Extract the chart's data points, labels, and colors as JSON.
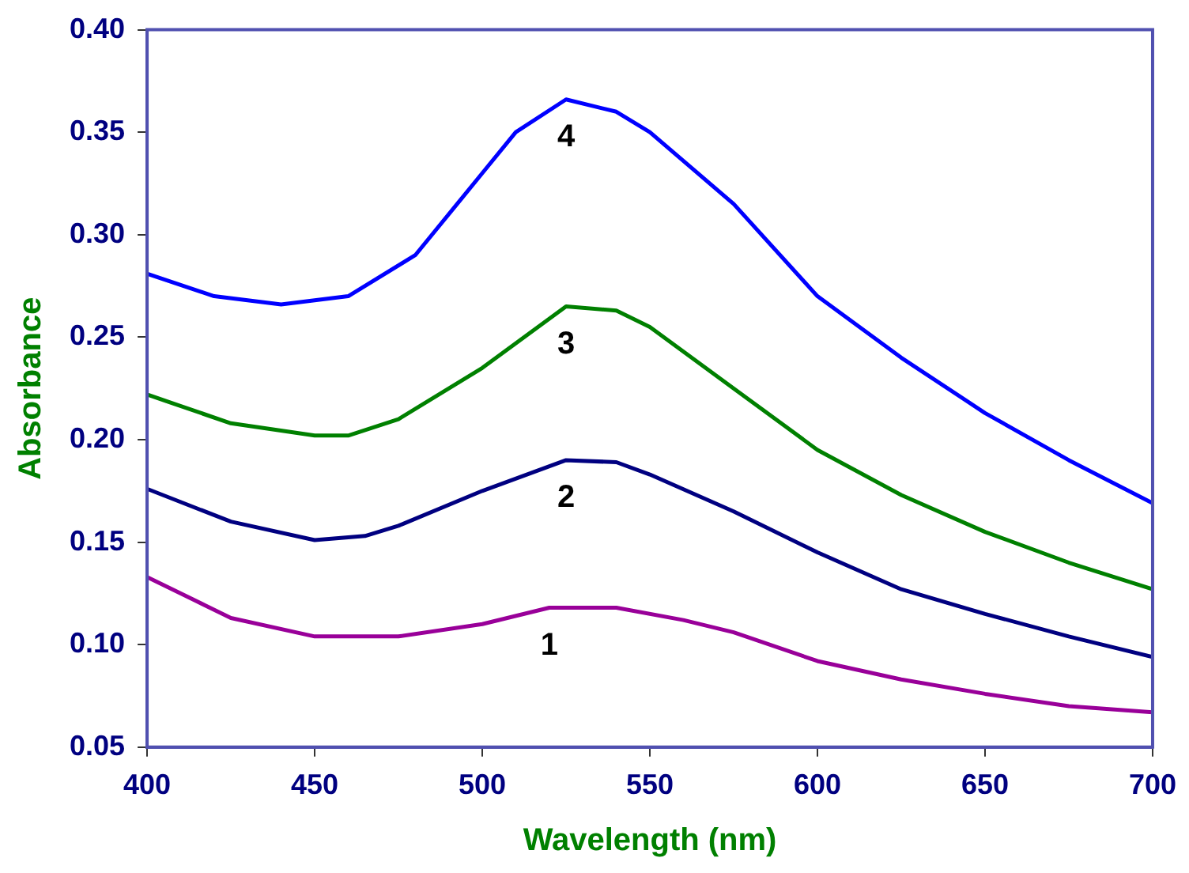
{
  "chart_data": {
    "type": "line",
    "xlabel": "Wavelength (nm)",
    "ylabel": "Absorbance",
    "xlim": [
      400,
      700
    ],
    "xticks": [
      400,
      450,
      500,
      550,
      600,
      650,
      700
    ],
    "ylim": [
      0.05,
      0.4
    ],
    "yticks": [
      {
        "value": 0.05,
        "label": "0.05"
      },
      {
        "value": 0.1,
        "label": "0.10"
      },
      {
        "value": 0.15,
        "label": "0.15"
      },
      {
        "value": 0.2,
        "label": "0.20"
      },
      {
        "value": 0.25,
        "label": "0.25"
      },
      {
        "value": 0.3,
        "label": "0.30"
      },
      {
        "value": 0.35,
        "label": "0.35"
      },
      {
        "value": 0.4,
        "label": "0.40"
      }
    ],
    "grid": false,
    "legend": false,
    "marker": "none",
    "line_style": "solid",
    "series": [
      {
        "name": "1",
        "color": "#990099",
        "x": [
          400,
          425,
          450,
          475,
          500,
          520,
          540,
          560,
          575,
          600,
          625,
          650,
          675,
          700
        ],
        "values": [
          0.133,
          0.113,
          0.104,
          0.104,
          0.11,
          0.118,
          0.118,
          0.112,
          0.106,
          0.092,
          0.083,
          0.076,
          0.07,
          0.067
        ]
      },
      {
        "name": "2",
        "color": "#000080",
        "x": [
          400,
          425,
          450,
          465,
          475,
          500,
          525,
          540,
          550,
          575,
          600,
          625,
          650,
          675,
          700
        ],
        "values": [
          0.176,
          0.16,
          0.151,
          0.153,
          0.158,
          0.175,
          0.19,
          0.189,
          0.183,
          0.165,
          0.145,
          0.127,
          0.115,
          0.104,
          0.094
        ]
      },
      {
        "name": "3",
        "color": "#008000",
        "x": [
          400,
          425,
          450,
          460,
          475,
          500,
          525,
          540,
          550,
          575,
          600,
          625,
          650,
          675,
          700
        ],
        "values": [
          0.222,
          0.208,
          0.202,
          0.202,
          0.21,
          0.235,
          0.265,
          0.263,
          0.255,
          0.225,
          0.195,
          0.173,
          0.155,
          0.14,
          0.127
        ]
      },
      {
        "name": "4",
        "color": "#0000ff",
        "x": [
          400,
          420,
          440,
          460,
          480,
          500,
          510,
          525,
          540,
          550,
          575,
          600,
          625,
          650,
          675,
          700
        ],
        "values": [
          0.281,
          0.27,
          0.266,
          0.27,
          0.29,
          0.33,
          0.35,
          0.366,
          0.36,
          0.35,
          0.315,
          0.27,
          0.24,
          0.213,
          0.19,
          0.169
        ]
      }
    ]
  }
}
